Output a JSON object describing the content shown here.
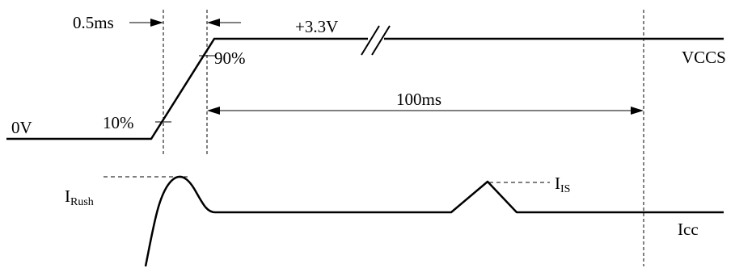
{
  "labels": {
    "rise_time": "0.5ms",
    "voltage_high": "+3.3V",
    "pct_90": "90%",
    "pct_10": "10%",
    "signal_vccs": "VCCS",
    "voltage_low": "0V",
    "interval": "100ms",
    "i_rush_main": "I",
    "i_rush_sub": "Rush",
    "i_is_main": "I",
    "i_is_sub": "IS",
    "signal_icc": "Icc"
  }
}
